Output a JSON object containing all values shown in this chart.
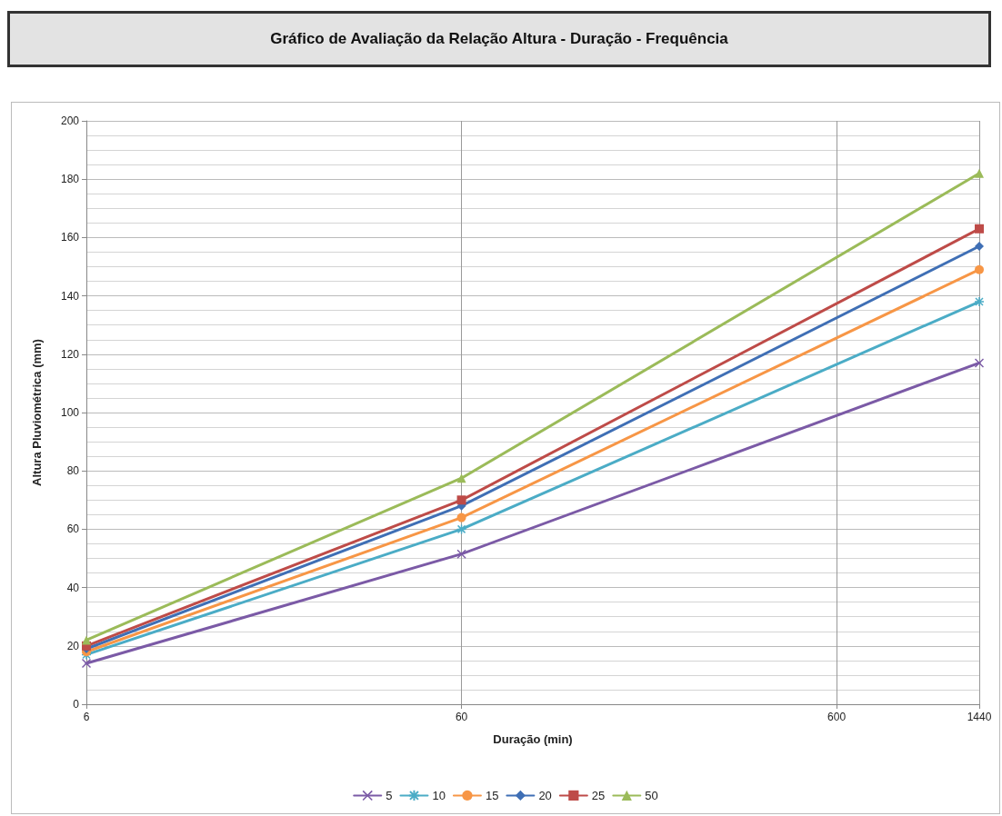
{
  "chart_data": {
    "type": "line",
    "title": "Gráfico de Avaliação da Relação Altura - Duração - Frequência",
    "xlabel": "Duração (min)",
    "ylabel": "Altura Pluviométrica (mm)",
    "x": [
      6,
      60,
      1440
    ],
    "series": [
      {
        "name": "5",
        "color": "#7b5aa6",
        "marker": "cross",
        "values": [
          14,
          51.5,
          117
        ]
      },
      {
        "name": "10",
        "color": "#4bacc6",
        "marker": "star",
        "values": [
          17,
          60,
          138
        ]
      },
      {
        "name": "15",
        "color": "#f79646",
        "marker": "circle",
        "values": [
          18,
          64,
          149
        ]
      },
      {
        "name": "20",
        "color": "#3f6fb5",
        "marker": "diamond",
        "values": [
          19,
          68,
          157
        ]
      },
      {
        "name": "25",
        "color": "#be4b48",
        "marker": "square",
        "values": [
          20,
          70,
          163
        ]
      },
      {
        "name": "50",
        "color": "#9bbb59",
        "marker": "triangle",
        "values": [
          22,
          77.5,
          182
        ]
      }
    ],
    "log": "x",
    "xlim": [
      6,
      1440
    ],
    "xticks": [
      6,
      60,
      600,
      1440
    ],
    "ylim": [
      0,
      200
    ],
    "yticks": [
      0,
      20,
      40,
      60,
      80,
      100,
      120,
      140,
      160,
      180,
      200
    ],
    "grid": true,
    "legend": "bottom",
    "line_style": "solid"
  }
}
